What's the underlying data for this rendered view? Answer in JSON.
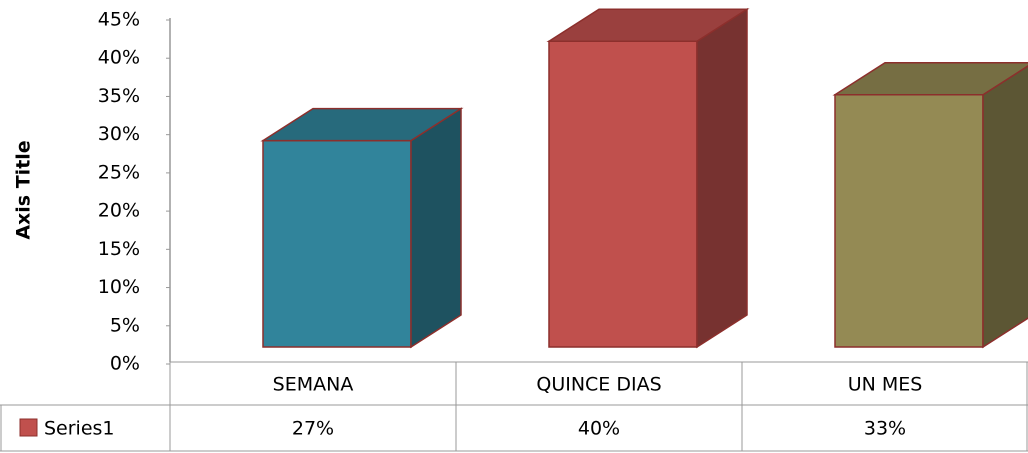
{
  "chart_data": {
    "type": "bar3d",
    "y_axis_label": "Axis Title",
    "categories": [
      "SEMANA",
      "QUINCE DIAS",
      "UN MES"
    ],
    "series": [
      {
        "name": "Series1",
        "color": "#c0504d",
        "values": [
          27,
          40,
          33
        ],
        "value_labels": [
          "27%",
          "40%",
          "33%"
        ]
      }
    ],
    "bar_colors": [
      "#31849b",
      "#c0504d",
      "#948a54"
    ],
    "ylim": [
      0,
      45
    ],
    "yticks": [
      {
        "value": 0,
        "label": "0%"
      },
      {
        "value": 5,
        "label": "5%"
      },
      {
        "value": 10,
        "label": "10%"
      },
      {
        "value": 15,
        "label": "15%"
      },
      {
        "value": 20,
        "label": "20%"
      },
      {
        "value": 25,
        "label": "25%"
      },
      {
        "value": 30,
        "label": "30%"
      },
      {
        "value": 35,
        "label": "35%"
      },
      {
        "value": 40,
        "label": "40%"
      },
      {
        "value": 45,
        "label": "45%"
      }
    ],
    "grid": false
  }
}
